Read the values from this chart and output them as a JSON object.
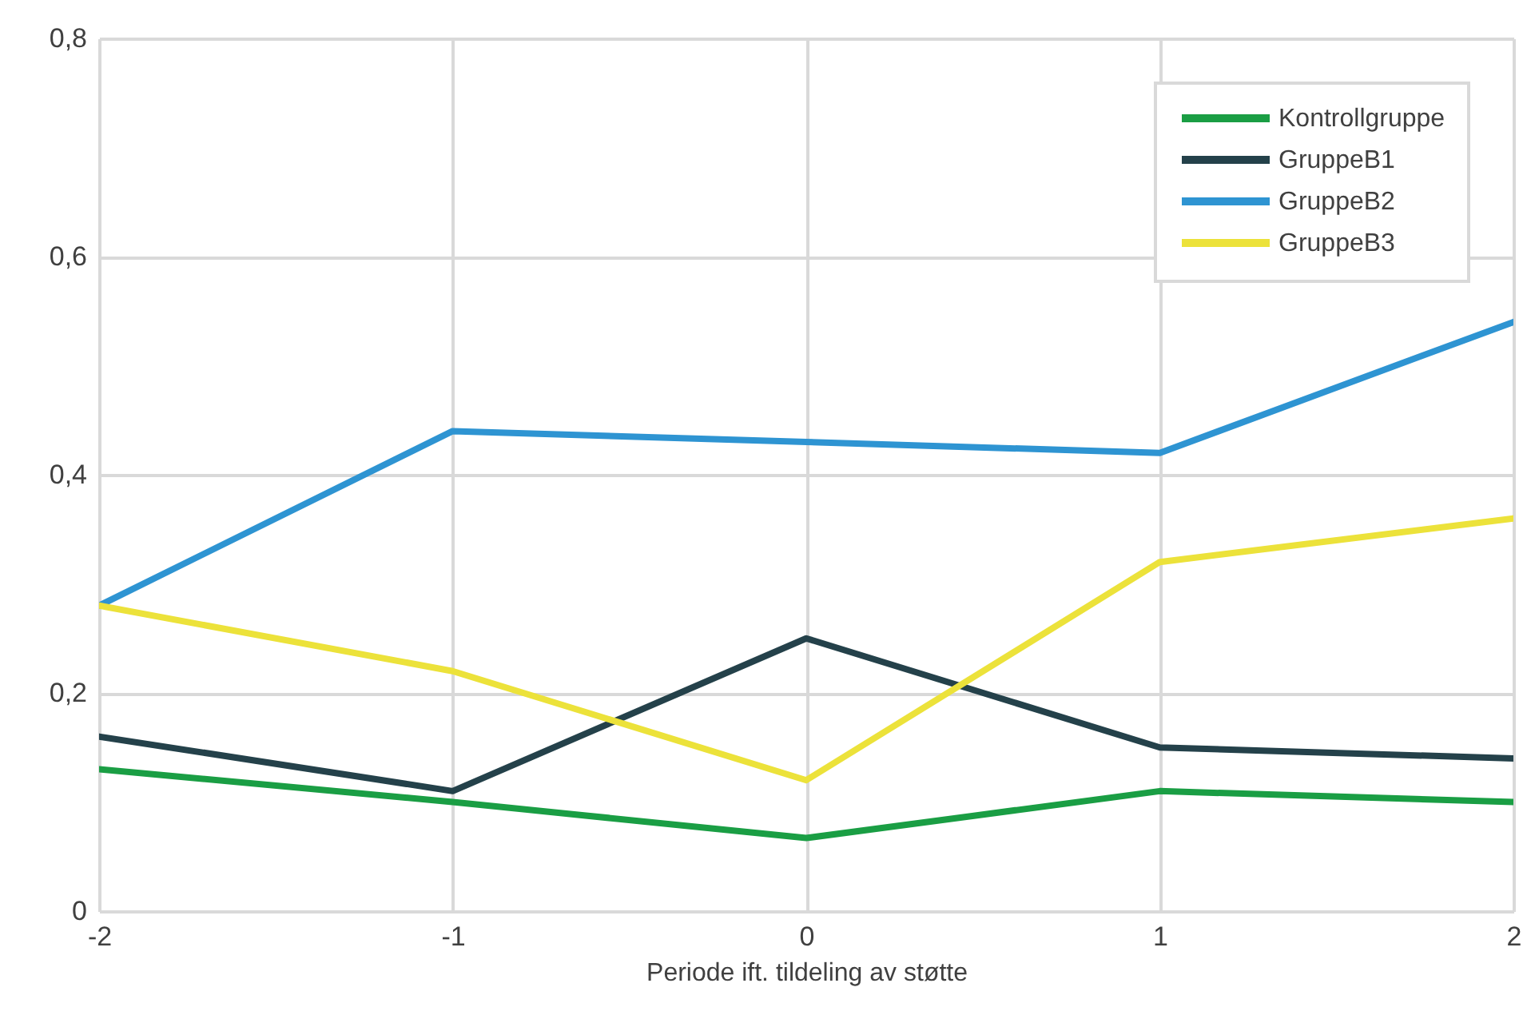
{
  "chart_data": {
    "type": "line",
    "xlabel": "Periode ift. tildeling av støtte",
    "x": [
      -2,
      -1,
      0,
      1,
      2
    ],
    "series": [
      {
        "name": "Kontrollgruppe",
        "color": "#1a9e44",
        "values": [
          0.13,
          0.1,
          0.067,
          0.11,
          0.1
        ]
      },
      {
        "name": "GruppeB1",
        "color": "#24414a",
        "values": [
          0.16,
          0.11,
          0.25,
          0.15,
          0.14
        ]
      },
      {
        "name": "GruppeB2",
        "color": "#2e94d2",
        "values": [
          0.28,
          0.44,
          0.43,
          0.42,
          0.54
        ]
      },
      {
        "name": "GruppeB3",
        "color": "#ece23a",
        "values": [
          0.28,
          0.22,
          0.12,
          0.32,
          0.36
        ]
      }
    ],
    "xlim": [
      -2,
      2
    ],
    "xticks": [
      -2,
      -1,
      0,
      1,
      2
    ],
    "ylim": [
      0,
      0.8
    ],
    "yticks": [
      0,
      {
        "value": 0.2,
        "label": "0,2"
      },
      {
        "value": 0.4,
        "label": "0,4"
      },
      {
        "value": 0.6,
        "label": "0,6"
      },
      {
        "value": 0.8,
        "label": "0,8"
      }
    ],
    "grid": true,
    "legend": "top right"
  }
}
